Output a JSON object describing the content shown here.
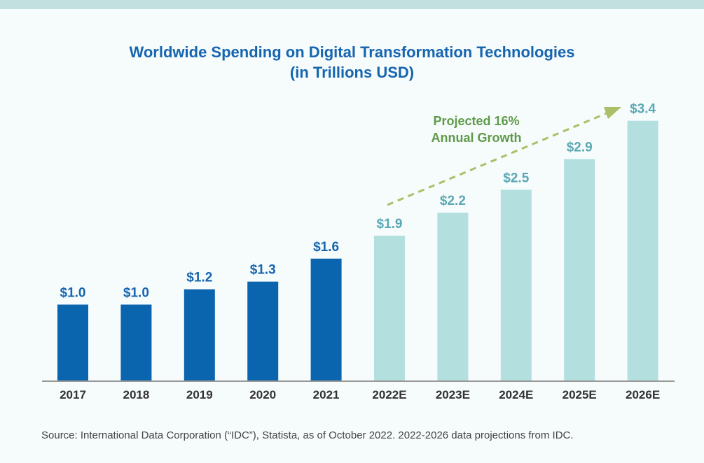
{
  "chart_data": {
    "type": "bar",
    "title": "Worldwide Spending on Digital Transformation Technologies",
    "subtitle": "(in Trillions USD)",
    "categories": [
      "2017",
      "2018",
      "2019",
      "2020",
      "2021",
      "2022E",
      "2023E",
      "2024E",
      "2025E",
      "2026E"
    ],
    "values": [
      1.0,
      1.0,
      1.2,
      1.3,
      1.6,
      1.9,
      2.2,
      2.5,
      2.9,
      3.4
    ],
    "data_labels": [
      "$1.0",
      "$1.0",
      "$1.2",
      "$1.3",
      "$1.6",
      "$1.9",
      "$2.2",
      "$2.5",
      "$2.9",
      "$3.4"
    ],
    "projected": [
      false,
      false,
      false,
      false,
      false,
      true,
      true,
      true,
      true,
      true
    ],
    "xlabel": "",
    "ylabel": "",
    "ylim": [
      0,
      3.4
    ],
    "grid": false,
    "annotation": {
      "line1": "Projected 16%",
      "line2": "Annual Growth"
    },
    "colors": {
      "actual": "#0a64ae",
      "projected": "#b3dfdf",
      "actual_label": "#1565b0",
      "projected_label": "#5aa8b4",
      "annotation": "#5f9a4a",
      "arrow": "#a9c068"
    }
  },
  "source": "Source: International Data Corporation (“IDC”), Statista, as of October 2022. 2022-2026 data projections from IDC."
}
